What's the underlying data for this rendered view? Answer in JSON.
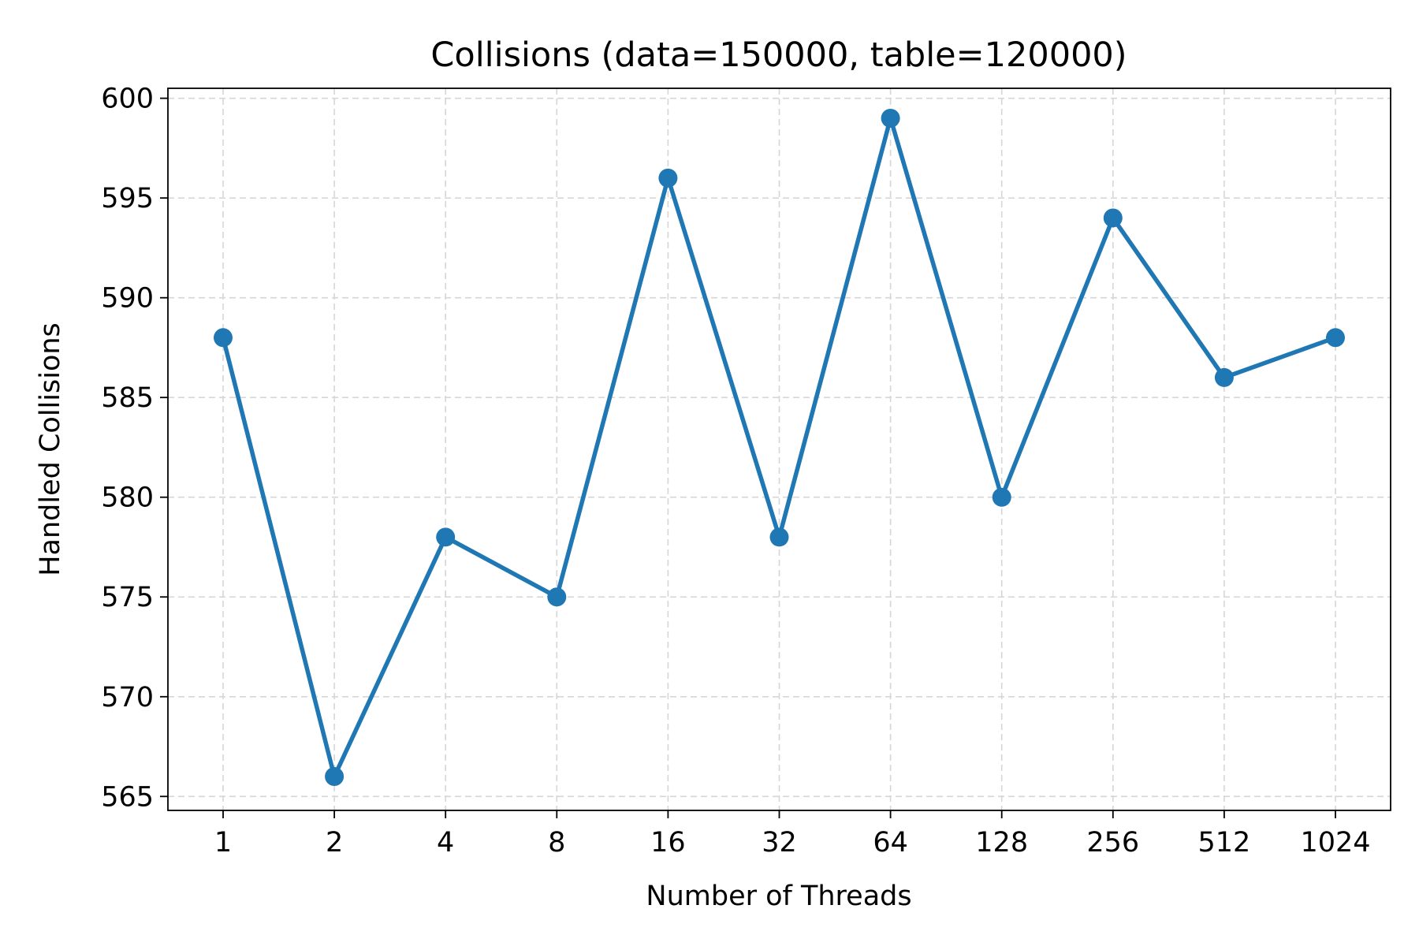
{
  "chart_data": {
    "type": "line",
    "title": "Collisions (data=150000, table=120000)",
    "xlabel": "Number of Threads",
    "ylabel": "Handled Collisions",
    "categories": [
      "1",
      "2",
      "4",
      "8",
      "16",
      "32",
      "64",
      "128",
      "256",
      "512",
      "1024"
    ],
    "series": [
      {
        "values": [
          588,
          566,
          578,
          575,
          596,
          578,
          599,
          580,
          594,
          586,
          588
        ],
        "color": "#1f77b4",
        "marker": "circle"
      }
    ],
    "ylim": [
      564.3,
      600.5
    ],
    "yticks": [
      565,
      570,
      575,
      580,
      585,
      590,
      595,
      600
    ],
    "grid": true,
    "grid_style": "dashed",
    "legend": "none"
  }
}
